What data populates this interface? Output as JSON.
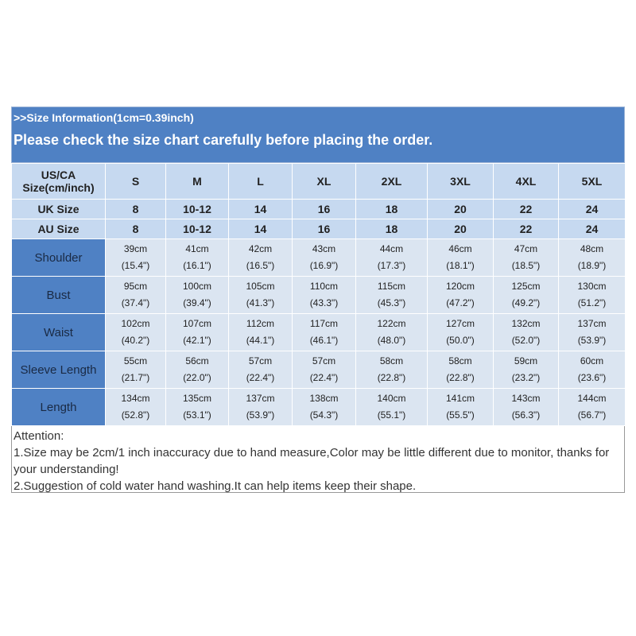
{
  "header": {
    "note": ">>Size Information(1cm=0.39inch)",
    "title": "Please check the size chart carefully before placing the order."
  },
  "table": {
    "columns": [
      "US/CA Size(cm/inch)",
      "S",
      "M",
      "L",
      "XL",
      "2XL",
      "3XL",
      "4XL",
      "5XL"
    ],
    "size_rows": [
      {
        "label": "UK Size",
        "values": [
          "8",
          "10-12",
          "14",
          "16",
          "18",
          "20",
          "22",
          "24"
        ]
      },
      {
        "label": "AU Size",
        "values": [
          "8",
          "10-12",
          "14",
          "16",
          "18",
          "20",
          "22",
          "24"
        ]
      }
    ],
    "measure_rows": [
      {
        "label": "Shoulder",
        "values": [
          [
            "39cm",
            "(15.4\")"
          ],
          [
            "41cm",
            "(16.1\")"
          ],
          [
            "42cm",
            "(16.5\")"
          ],
          [
            "43cm",
            "(16.9\")"
          ],
          [
            "44cm",
            "(17.3\")"
          ],
          [
            "46cm",
            "(18.1\")"
          ],
          [
            "47cm",
            "(18.5\")"
          ],
          [
            "48cm",
            "(18.9\")"
          ]
        ]
      },
      {
        "label": "Bust",
        "values": [
          [
            "95cm",
            "(37.4\")"
          ],
          [
            "100cm",
            "(39.4\")"
          ],
          [
            "105cm",
            "(41.3\")"
          ],
          [
            "110cm",
            "(43.3\")"
          ],
          [
            "115cm",
            "(45.3\")"
          ],
          [
            "120cm",
            "(47.2\")"
          ],
          [
            "125cm",
            "(49.2\")"
          ],
          [
            "130cm",
            "(51.2\")"
          ]
        ]
      },
      {
        "label": "Waist",
        "values": [
          [
            "102cm",
            "(40.2\")"
          ],
          [
            "107cm",
            "(42.1\")"
          ],
          [
            "112cm",
            "(44.1\")"
          ],
          [
            "117cm",
            "(46.1\")"
          ],
          [
            "122cm",
            "(48.0\")"
          ],
          [
            "127cm",
            "(50.0\")"
          ],
          [
            "132cm",
            "(52.0\")"
          ],
          [
            "137cm",
            "(53.9\")"
          ]
        ]
      },
      {
        "label": "Sleeve Length",
        "values": [
          [
            "55cm",
            "(21.7\")"
          ],
          [
            "56cm",
            "(22.0\")"
          ],
          [
            "57cm",
            "(22.4\")"
          ],
          [
            "57cm",
            "(22.4\")"
          ],
          [
            "58cm",
            "(22.8\")"
          ],
          [
            "58cm",
            "(22.8\")"
          ],
          [
            "59cm",
            "(23.2\")"
          ],
          [
            "60cm",
            "(23.6\")"
          ]
        ]
      },
      {
        "label": "Length",
        "values": [
          [
            "134cm",
            "(52.8\")"
          ],
          [
            "135cm",
            "(53.1\")"
          ],
          [
            "137cm",
            "(53.9\")"
          ],
          [
            "138cm",
            "(54.3\")"
          ],
          [
            "140cm",
            "(55.1\")"
          ],
          [
            "141cm",
            "(55.5\")"
          ],
          [
            "143cm",
            "(56.3\")"
          ],
          [
            "144cm",
            "(56.7\")"
          ]
        ]
      }
    ]
  },
  "attention": {
    "title": "Attention:",
    "items": [
      "1.Size may be 2cm/1 inch inaccuracy due to hand measure,Color may be little different due to monitor, thanks for your understanding!",
      "2.Suggestion of cold water hand washing.It can help items keep their shape."
    ]
  }
}
